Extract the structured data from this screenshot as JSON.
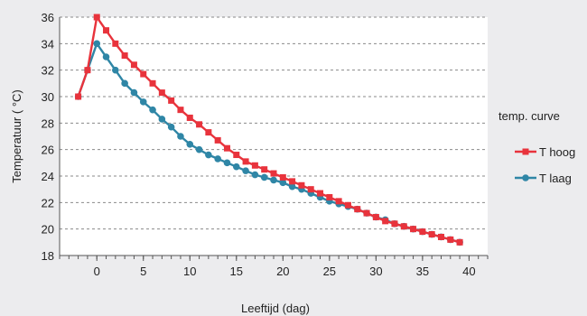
{
  "chart_data": {
    "type": "line",
    "xlabel": "Leeftijd (dag)",
    "ylabel": "Temperatuur ( °C)",
    "xlim": [
      -4,
      42
    ],
    "ylim": [
      18,
      36
    ],
    "x_ticks": [
      0,
      5,
      10,
      15,
      20,
      25,
      30,
      35,
      40
    ],
    "y_ticks": [
      18,
      20,
      22,
      24,
      26,
      28,
      30,
      32,
      34,
      36
    ],
    "x_minor_step": 1,
    "grid": "horizontal-dashed",
    "legend": {
      "title": "temp. curve",
      "position": "right"
    },
    "colors": {
      "T hoog": "#e8333c",
      "T laag": "#2f86a6",
      "grid": "#8a8a8a",
      "plot_background": "#ffffff",
      "page_background": "#ececee"
    },
    "x": [
      -2,
      -1,
      0,
      1,
      2,
      3,
      4,
      5,
      6,
      7,
      8,
      9,
      10,
      11,
      12,
      13,
      14,
      15,
      16,
      17,
      18,
      19,
      20,
      21,
      22,
      23,
      24,
      25,
      26,
      27,
      28,
      29,
      30,
      31,
      32,
      33,
      34,
      35,
      36,
      37,
      38,
      39
    ],
    "series": [
      {
        "name": "T hoog",
        "marker": "square",
        "values": [
          30.0,
          32.0,
          36.0,
          35.0,
          34.0,
          33.1,
          32.4,
          31.7,
          31.0,
          30.3,
          29.7,
          29.0,
          28.4,
          27.9,
          27.3,
          26.7,
          26.1,
          25.6,
          25.1,
          24.8,
          24.5,
          24.2,
          23.9,
          23.6,
          23.3,
          23.0,
          22.7,
          22.4,
          22.1,
          21.8,
          21.5,
          21.2,
          20.9,
          20.6,
          20.4,
          20.2,
          20.0,
          19.8,
          19.6,
          19.4,
          19.2,
          19.0
        ]
      },
      {
        "name": "T laag",
        "marker": "circle",
        "values": [
          30.0,
          32.0,
          34.0,
          33.0,
          32.0,
          31.0,
          30.3,
          29.6,
          29.0,
          28.3,
          27.7,
          27.0,
          26.4,
          26.0,
          25.6,
          25.3,
          25.0,
          24.7,
          24.4,
          24.1,
          23.9,
          23.7,
          23.5,
          23.2,
          23.0,
          22.7,
          22.4,
          22.1,
          21.9,
          21.7,
          21.5,
          21.2,
          20.9,
          20.7,
          20.4,
          20.2,
          20.0,
          19.8,
          19.6,
          19.4,
          19.2,
          19.0
        ]
      }
    ]
  }
}
